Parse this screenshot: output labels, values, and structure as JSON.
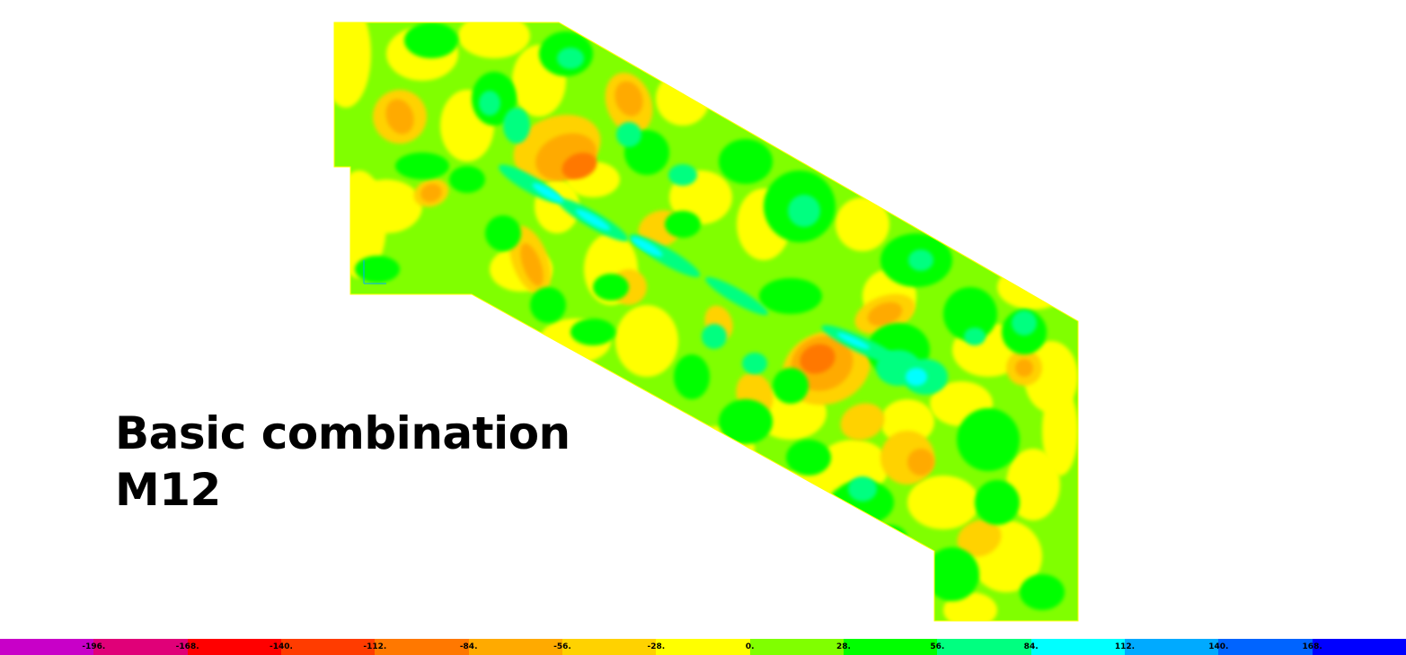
{
  "caption": {
    "line1": "Basic combination",
    "line2": "M12"
  },
  "legend": {
    "labels": [
      "-196.",
      "-168.",
      "-140.",
      "-112.",
      "-84.",
      "-56.",
      "-28.",
      "0.",
      "28.",
      "56.",
      "84.",
      "112.",
      "140.",
      "168."
    ],
    "colors": [
      "#c800c8",
      "#e00078",
      "#ff0000",
      "#ff3c00",
      "#ff7800",
      "#ffaa00",
      "#ffd200",
      "#ffff00",
      "#80ff00",
      "#00ff00",
      "#00ff80",
      "#00ffff",
      "#00aaff",
      "#0064ff",
      "#0000ff"
    ]
  },
  "contour_colors": {
    "orange_dark": "#ff7800",
    "orange": "#ffaa00",
    "yellow_orange": "#ffd200",
    "yellow": "#ffff00",
    "yellow_green": "#80ff00",
    "green": "#00ff00",
    "spring_green": "#00ff80",
    "cyan": "#00ffff"
  }
}
